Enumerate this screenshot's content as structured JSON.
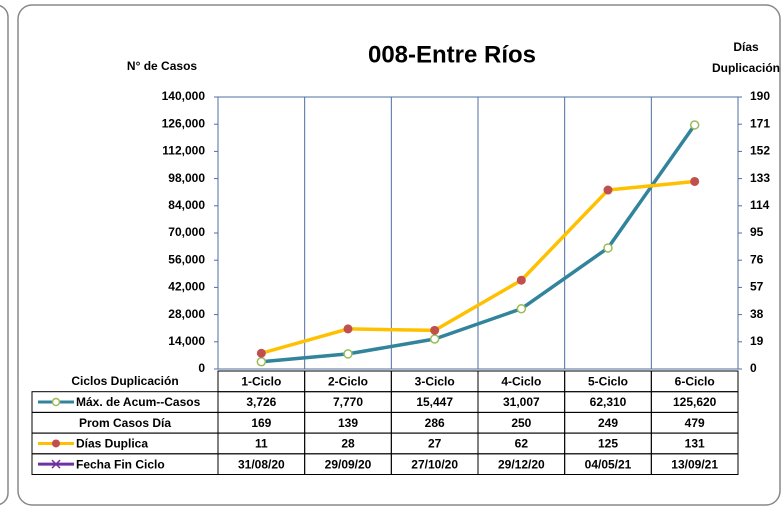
{
  "chart_data": {
    "type": "line",
    "title": "008-Entre Ríos",
    "y_label": "N° de Casos",
    "y2_label": [
      "Días",
      "Duplicación"
    ],
    "table_header": "Ciclos Duplicación",
    "categories": [
      "1-Ciclo",
      "2-Ciclo",
      "3-Ciclo",
      "4-Ciclo",
      "5-Ciclo",
      "6-Ciclo"
    ],
    "series": [
      {
        "name": "Máx. de Acum--Casos",
        "color": "#31849b",
        "axis": "y",
        "values": [
          3726,
          7770,
          15447,
          31007,
          62310,
          125620
        ],
        "value_labels": [
          "3,726",
          "7,770",
          "15,447",
          "31,007",
          "62,310",
          "125,620"
        ]
      },
      {
        "name": "Días Duplica",
        "color": "#ffc000",
        "axis": "y2",
        "values": [
          11,
          28,
          27,
          62,
          125,
          131
        ]
      }
    ],
    "table_rows": [
      {
        "name": "Prom Casos Día",
        "values": [
          169,
          139,
          286,
          250,
          249,
          479
        ]
      },
      {
        "name": "Fecha Fin Ciclo",
        "color": "#7030a0",
        "values": [
          "31/08/20",
          "29/09/20",
          "27/10/20",
          "29/12/20",
          "04/05/21",
          "13/09/21"
        ]
      }
    ],
    "ylim": [
      0,
      140000
    ],
    "yticks": [
      0,
      {
        "value": 14000,
        "label": "14,000"
      },
      {
        "value": 28000,
        "label": "28,000"
      },
      {
        "value": 42000,
        "label": "42,000"
      },
      {
        "value": 56000,
        "label": "56,000"
      },
      {
        "value": 70000,
        "label": "70,000"
      },
      {
        "value": 84000,
        "label": "84,000"
      },
      {
        "value": 98000,
        "label": "98,000"
      },
      {
        "value": 112000,
        "label": "112,000"
      },
      {
        "value": 126000,
        "label": "126,000"
      },
      {
        "value": 140000,
        "label": "140,000"
      }
    ],
    "y2lim": [
      0,
      190
    ],
    "y2ticks": [
      0,
      19,
      38,
      57,
      76,
      95,
      114,
      133,
      152,
      171,
      190
    ]
  }
}
